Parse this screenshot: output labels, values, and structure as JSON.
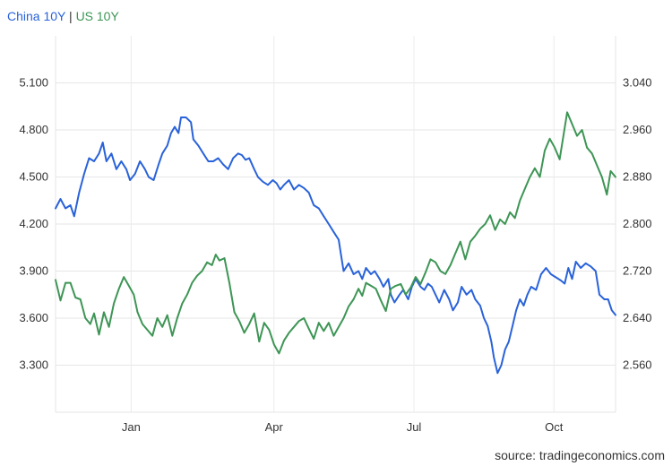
{
  "source": "source: tradingeconomics.com",
  "legend": {
    "separator": "|",
    "items": [
      {
        "label": "China 10Y",
        "color": "#2962d9"
      },
      {
        "label": "US 10Y",
        "color": "#3d9555"
      }
    ]
  },
  "chart_data": {
    "type": "line",
    "grid": true,
    "legend_placement": "top-left",
    "x_ticks": [
      {
        "label": "Jan",
        "x": 0.135
      },
      {
        "label": "Apr",
        "x": 0.39
      },
      {
        "label": "Jul",
        "x": 0.64
      },
      {
        "label": "Oct",
        "x": 0.89
      }
    ],
    "x_range": [
      0,
      1
    ],
    "y_left": {
      "range": [
        3.0,
        5.4
      ],
      "ticks": [
        "3.300",
        "3.600",
        "3.900",
        "4.200",
        "4.500",
        "4.800",
        "5.100"
      ],
      "tick_values": [
        3.3,
        3.6,
        3.9,
        4.2,
        4.5,
        4.8,
        5.1
      ]
    },
    "y_right": {
      "range": [
        2.48,
        3.12
      ],
      "ticks": [
        "2.560",
        "2.640",
        "2.720",
        "2.800",
        "2.880",
        "2.960",
        "3.040"
      ],
      "tick_values": [
        2.56,
        2.64,
        2.72,
        2.8,
        2.88,
        2.96,
        3.04
      ]
    },
    "series": [
      {
        "name": "China 10Y",
        "axis": "left",
        "color": "#2962d9",
        "points": [
          [
            0.0,
            4.3
          ],
          [
            0.008,
            4.36
          ],
          [
            0.016,
            4.3
          ],
          [
            0.024,
            4.32
          ],
          [
            0.03,
            4.25
          ],
          [
            0.038,
            4.4
          ],
          [
            0.046,
            4.52
          ],
          [
            0.054,
            4.62
          ],
          [
            0.062,
            4.6
          ],
          [
            0.07,
            4.65
          ],
          [
            0.076,
            4.72
          ],
          [
            0.082,
            4.6
          ],
          [
            0.09,
            4.65
          ],
          [
            0.098,
            4.55
          ],
          [
            0.106,
            4.6
          ],
          [
            0.114,
            4.55
          ],
          [
            0.12,
            4.48
          ],
          [
            0.128,
            4.52
          ],
          [
            0.136,
            4.6
          ],
          [
            0.144,
            4.55
          ],
          [
            0.15,
            4.5
          ],
          [
            0.158,
            4.48
          ],
          [
            0.166,
            4.58
          ],
          [
            0.172,
            4.65
          ],
          [
            0.18,
            4.7
          ],
          [
            0.186,
            4.78
          ],
          [
            0.192,
            4.82
          ],
          [
            0.198,
            4.78
          ],
          [
            0.202,
            4.88
          ],
          [
            0.21,
            4.88
          ],
          [
            0.218,
            4.85
          ],
          [
            0.222,
            4.74
          ],
          [
            0.23,
            4.7
          ],
          [
            0.238,
            4.65
          ],
          [
            0.246,
            4.6
          ],
          [
            0.254,
            4.6
          ],
          [
            0.262,
            4.62
          ],
          [
            0.27,
            4.58
          ],
          [
            0.278,
            4.55
          ],
          [
            0.286,
            4.62
          ],
          [
            0.294,
            4.65
          ],
          [
            0.3,
            4.64
          ],
          [
            0.306,
            4.61
          ],
          [
            0.312,
            4.62
          ],
          [
            0.32,
            4.55
          ],
          [
            0.326,
            4.5
          ],
          [
            0.334,
            4.47
          ],
          [
            0.342,
            4.45
          ],
          [
            0.35,
            4.48
          ],
          [
            0.356,
            4.46
          ],
          [
            0.362,
            4.42
          ],
          [
            0.368,
            4.45
          ],
          [
            0.376,
            4.48
          ],
          [
            0.384,
            4.42
          ],
          [
            0.392,
            4.45
          ],
          [
            0.4,
            4.43
          ],
          [
            0.408,
            4.4
          ],
          [
            0.416,
            4.32
          ],
          [
            0.424,
            4.3
          ],
          [
            0.432,
            4.25
          ],
          [
            0.44,
            4.2
          ],
          [
            0.448,
            4.15
          ],
          [
            0.456,
            4.1
          ],
          [
            0.46,
            4.0
          ],
          [
            0.464,
            3.9
          ],
          [
            0.472,
            3.95
          ],
          [
            0.48,
            3.88
          ],
          [
            0.488,
            3.9
          ],
          [
            0.494,
            3.85
          ],
          [
            0.5,
            3.92
          ],
          [
            0.508,
            3.88
          ],
          [
            0.514,
            3.9
          ],
          [
            0.522,
            3.85
          ],
          [
            0.528,
            3.8
          ],
          [
            0.536,
            3.85
          ],
          [
            0.54,
            3.75
          ],
          [
            0.546,
            3.7
          ],
          [
            0.554,
            3.75
          ],
          [
            0.56,
            3.78
          ],
          [
            0.568,
            3.72
          ],
          [
            0.574,
            3.8
          ],
          [
            0.58,
            3.85
          ],
          [
            0.588,
            3.8
          ],
          [
            0.594,
            3.78
          ],
          [
            0.6,
            3.82
          ],
          [
            0.606,
            3.8
          ],
          [
            0.612,
            3.75
          ],
          [
            0.618,
            3.7
          ],
          [
            0.626,
            3.78
          ],
          [
            0.634,
            3.72
          ],
          [
            0.64,
            3.65
          ],
          [
            0.648,
            3.7
          ],
          [
            0.654,
            3.8
          ],
          [
            0.662,
            3.75
          ],
          [
            0.67,
            3.78
          ],
          [
            0.676,
            3.72
          ],
          [
            0.684,
            3.68
          ],
          [
            0.69,
            3.6
          ],
          [
            0.696,
            3.55
          ],
          [
            0.702,
            3.45
          ],
          [
            0.706,
            3.35
          ],
          [
            0.712,
            3.25
          ],
          [
            0.718,
            3.3
          ],
          [
            0.724,
            3.4
          ],
          [
            0.73,
            3.45
          ],
          [
            0.736,
            3.55
          ],
          [
            0.742,
            3.65
          ],
          [
            0.748,
            3.72
          ],
          [
            0.754,
            3.68
          ],
          [
            0.76,
            3.75
          ],
          [
            0.766,
            3.8
          ],
          [
            0.774,
            3.78
          ],
          [
            0.782,
            3.88
          ],
          [
            0.79,
            3.92
          ],
          [
            0.798,
            3.88
          ],
          [
            0.806,
            3.86
          ],
          [
            0.814,
            3.84
          ],
          [
            0.82,
            3.82
          ],
          [
            0.826,
            3.92
          ],
          [
            0.832,
            3.85
          ],
          [
            0.838,
            3.96
          ],
          [
            0.846,
            3.92
          ],
          [
            0.854,
            3.95
          ],
          [
            0.862,
            3.93
          ],
          [
            0.87,
            3.9
          ],
          [
            0.876,
            3.75
          ],
          [
            0.884,
            3.72
          ],
          [
            0.89,
            3.72
          ],
          [
            0.896,
            3.65
          ],
          [
            0.902,
            3.62
          ]
        ]
      },
      {
        "name": "US 10Y",
        "axis": "right",
        "color": "#3d9555",
        "points": [
          [
            0.0,
            2.705
          ],
          [
            0.008,
            2.67
          ],
          [
            0.016,
            2.7
          ],
          [
            0.024,
            2.7
          ],
          [
            0.032,
            2.675
          ],
          [
            0.04,
            2.672
          ],
          [
            0.048,
            2.64
          ],
          [
            0.056,
            2.63
          ],
          [
            0.062,
            2.648
          ],
          [
            0.07,
            2.612
          ],
          [
            0.078,
            2.65
          ],
          [
            0.086,
            2.625
          ],
          [
            0.094,
            2.665
          ],
          [
            0.102,
            2.69
          ],
          [
            0.11,
            2.71
          ],
          [
            0.118,
            2.695
          ],
          [
            0.126,
            2.68
          ],
          [
            0.132,
            2.65
          ],
          [
            0.14,
            2.63
          ],
          [
            0.148,
            2.62
          ],
          [
            0.156,
            2.61
          ],
          [
            0.164,
            2.64
          ],
          [
            0.172,
            2.625
          ],
          [
            0.18,
            2.645
          ],
          [
            0.188,
            2.61
          ],
          [
            0.196,
            2.64
          ],
          [
            0.204,
            2.665
          ],
          [
            0.212,
            2.68
          ],
          [
            0.22,
            2.7
          ],
          [
            0.228,
            2.712
          ],
          [
            0.236,
            2.72
          ],
          [
            0.244,
            2.735
          ],
          [
            0.252,
            2.73
          ],
          [
            0.258,
            2.748
          ],
          [
            0.264,
            2.738
          ],
          [
            0.272,
            2.742
          ],
          [
            0.28,
            2.7
          ],
          [
            0.288,
            2.65
          ],
          [
            0.296,
            2.635
          ],
          [
            0.304,
            2.615
          ],
          [
            0.312,
            2.63
          ],
          [
            0.32,
            2.648
          ],
          [
            0.328,
            2.6
          ],
          [
            0.336,
            2.632
          ],
          [
            0.344,
            2.62
          ],
          [
            0.352,
            2.595
          ],
          [
            0.36,
            2.58
          ],
          [
            0.368,
            2.602
          ],
          [
            0.376,
            2.615
          ],
          [
            0.384,
            2.625
          ],
          [
            0.392,
            2.635
          ],
          [
            0.4,
            2.64
          ],
          [
            0.408,
            2.622
          ],
          [
            0.416,
            2.605
          ],
          [
            0.424,
            2.632
          ],
          [
            0.432,
            2.618
          ],
          [
            0.44,
            2.632
          ],
          [
            0.448,
            2.61
          ],
          [
            0.456,
            2.625
          ],
          [
            0.464,
            2.64
          ],
          [
            0.472,
            2.66
          ],
          [
            0.48,
            2.672
          ],
          [
            0.488,
            2.69
          ],
          [
            0.494,
            2.678
          ],
          [
            0.5,
            2.7
          ],
          [
            0.508,
            2.695
          ],
          [
            0.516,
            2.69
          ],
          [
            0.524,
            2.67
          ],
          [
            0.532,
            2.652
          ],
          [
            0.54,
            2.69
          ],
          [
            0.548,
            2.695
          ],
          [
            0.556,
            2.698
          ],
          [
            0.564,
            2.68
          ],
          [
            0.572,
            2.692
          ],
          [
            0.58,
            2.71
          ],
          [
            0.588,
            2.698
          ],
          [
            0.596,
            2.718
          ],
          [
            0.604,
            2.74
          ],
          [
            0.612,
            2.735
          ],
          [
            0.62,
            2.72
          ],
          [
            0.628,
            2.715
          ],
          [
            0.636,
            2.73
          ],
          [
            0.644,
            2.75
          ],
          [
            0.652,
            2.77
          ],
          [
            0.66,
            2.74
          ],
          [
            0.668,
            2.77
          ],
          [
            0.676,
            2.78
          ],
          [
            0.684,
            2.792
          ],
          [
            0.692,
            2.8
          ],
          [
            0.7,
            2.815
          ],
          [
            0.708,
            2.79
          ],
          [
            0.716,
            2.808
          ],
          [
            0.724,
            2.8
          ],
          [
            0.732,
            2.82
          ],
          [
            0.74,
            2.81
          ],
          [
            0.748,
            2.84
          ],
          [
            0.756,
            2.86
          ],
          [
            0.764,
            2.88
          ],
          [
            0.772,
            2.895
          ],
          [
            0.78,
            2.88
          ],
          [
            0.788,
            2.925
          ],
          [
            0.796,
            2.945
          ],
          [
            0.804,
            2.93
          ],
          [
            0.812,
            2.91
          ],
          [
            0.818,
            2.95
          ],
          [
            0.824,
            2.99
          ],
          [
            0.832,
            2.97
          ],
          [
            0.84,
            2.95
          ],
          [
            0.848,
            2.96
          ],
          [
            0.856,
            2.93
          ],
          [
            0.864,
            2.92
          ],
          [
            0.872,
            2.9
          ],
          [
            0.88,
            2.88
          ],
          [
            0.888,
            2.85
          ],
          [
            0.894,
            2.89
          ],
          [
            0.902,
            2.88
          ]
        ]
      }
    ]
  }
}
